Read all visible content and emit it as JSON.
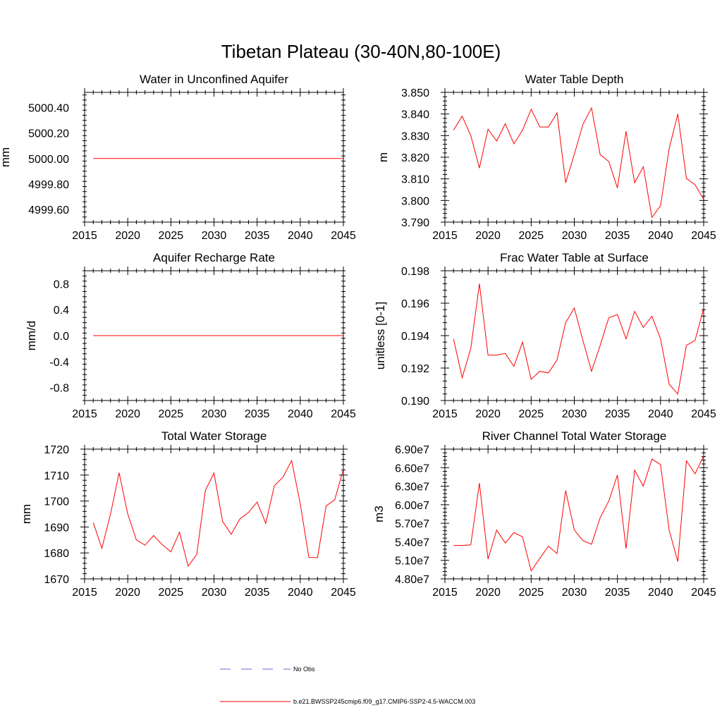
{
  "title": "Tibetan Plateau (30-40N,80-100E)",
  "colors": {
    "model": "#ff0000",
    "obs": "#6b6bd6",
    "axes": "#000000"
  },
  "legend": {
    "obs_label": "No Obs",
    "model_label": "b.e21.BWSSP245cmip6.f09_g17.CMIP6-SSP2-4.5-WACCM.003"
  },
  "chart_data": [
    {
      "type": "line",
      "title": "Water in Unconfined Aquifer",
      "ylabel": "mm",
      "xlim": [
        2015,
        2045
      ],
      "ylim": [
        4999.5,
        5000.52
      ],
      "xticks": [
        2015,
        2020,
        2025,
        2030,
        2035,
        2040,
        2045
      ],
      "yticks": [
        4999.6,
        4999.8,
        5000.0,
        5000.2,
        5000.4
      ],
      "ytick_labels": [
        "4999.60",
        "4999.80",
        "5000.00",
        "5000.20",
        "5000.40"
      ],
      "series": [
        {
          "x": [
            2016,
            2017,
            2018,
            2019,
            2020,
            2021,
            2022,
            2023,
            2024,
            2025,
            2026,
            2027,
            2028,
            2029,
            2030,
            2031,
            2032,
            2033,
            2034,
            2035,
            2036,
            2037,
            2038,
            2039,
            2040,
            2041,
            2042,
            2043,
            2044,
            2045
          ],
          "values": [
            5000,
            5000,
            5000,
            5000,
            5000,
            5000,
            5000,
            5000,
            5000,
            5000,
            5000,
            5000,
            5000,
            5000,
            5000,
            5000,
            5000,
            5000,
            5000,
            5000,
            5000,
            5000,
            5000,
            5000,
            5000,
            5000,
            5000,
            5000,
            5000,
            5000
          ]
        }
      ]
    },
    {
      "type": "line",
      "title": "Water Table Depth",
      "ylabel": "m",
      "xlim": [
        2015,
        2045
      ],
      "ylim": [
        3.79,
        3.85
      ],
      "xticks": [
        2015,
        2020,
        2025,
        2030,
        2035,
        2040,
        2045
      ],
      "yticks": [
        3.79,
        3.8,
        3.81,
        3.82,
        3.83,
        3.84,
        3.85
      ],
      "ytick_labels": [
        "3.790",
        "3.800",
        "3.810",
        "3.820",
        "3.830",
        "3.840",
        "3.850"
      ],
      "series": [
        {
          "x": [
            2016,
            2017,
            2018,
            2019,
            2020,
            2021,
            2022,
            2023,
            2024,
            2025,
            2026,
            2027,
            2028,
            2029,
            2030,
            2031,
            2032,
            2033,
            2034,
            2035,
            2036,
            2037,
            2038,
            2039,
            2040,
            2041,
            2042,
            2043,
            2044,
            2045
          ],
          "values": [
            3.8325,
            3.839,
            3.83,
            3.815,
            3.833,
            3.8275,
            3.8355,
            3.8262,
            3.8325,
            3.8422,
            3.834,
            3.834,
            3.8405,
            3.8082,
            3.8213,
            3.8352,
            3.8428,
            3.8212,
            3.818,
            3.8058,
            3.832,
            3.8082,
            3.8156,
            3.7922,
            3.7976,
            3.824,
            3.84,
            3.8102,
            3.8073,
            3.8005
          ]
        }
      ]
    },
    {
      "type": "line",
      "title": "Aquifer Recharge Rate",
      "ylabel": "mm/d",
      "xlim": [
        2015,
        2045
      ],
      "ylim": [
        -1.0,
        1.0
      ],
      "xticks": [
        2015,
        2020,
        2025,
        2030,
        2035,
        2040,
        2045
      ],
      "yticks": [
        -0.8,
        -0.4,
        0.0,
        0.4,
        0.8
      ],
      "ytick_labels": [
        "-0.8",
        "-0.4",
        "0.0",
        "0.4",
        "0.8"
      ],
      "series": [
        {
          "x": [
            2016,
            2017,
            2018,
            2019,
            2020,
            2021,
            2022,
            2023,
            2024,
            2025,
            2026,
            2027,
            2028,
            2029,
            2030,
            2031,
            2032,
            2033,
            2034,
            2035,
            2036,
            2037,
            2038,
            2039,
            2040,
            2041,
            2042,
            2043,
            2044,
            2045
          ],
          "values": [
            0,
            0,
            0,
            0,
            0,
            0,
            0,
            0,
            0,
            0,
            0,
            0,
            0,
            0,
            0,
            0,
            0,
            0,
            0,
            0,
            0,
            0,
            0,
            0,
            0,
            0,
            0,
            0,
            0,
            0
          ]
        }
      ]
    },
    {
      "type": "line",
      "title": "Frac Water Table at Surface",
      "ylabel": "unitless [0-1]",
      "xlim": [
        2015,
        2045
      ],
      "ylim": [
        0.19,
        0.198
      ],
      "xticks": [
        2015,
        2020,
        2025,
        2030,
        2035,
        2040,
        2045
      ],
      "yticks": [
        0.19,
        0.192,
        0.194,
        0.196,
        0.198
      ],
      "ytick_labels": [
        "0.190",
        "0.192",
        "0.194",
        "0.196",
        "0.198"
      ],
      "series": [
        {
          "x": [
            2016,
            2017,
            2018,
            2019,
            2020,
            2021,
            2022,
            2023,
            2024,
            2025,
            2026,
            2027,
            2028,
            2029,
            2030,
            2031,
            2032,
            2033,
            2034,
            2035,
            2036,
            2037,
            2038,
            2039,
            2040,
            2041,
            2042,
            2043,
            2044,
            2045
          ],
          "values": [
            0.1938,
            0.1914,
            0.1932,
            0.1972,
            0.1928,
            0.1928,
            0.1929,
            0.1921,
            0.1936,
            0.1913,
            0.1918,
            0.1917,
            0.1925,
            0.1948,
            0.1957,
            0.1937,
            0.1918,
            0.1934,
            0.1951,
            0.1953,
            0.1938,
            0.1955,
            0.1945,
            0.1952,
            0.1938,
            0.191,
            0.1904,
            0.1934,
            0.1937,
            0.1957
          ]
        }
      ]
    },
    {
      "type": "line",
      "title": "Total Water Storage",
      "ylabel": "mm",
      "xlim": [
        2015,
        2045
      ],
      "ylim": [
        1670,
        1720
      ],
      "xticks": [
        2015,
        2020,
        2025,
        2030,
        2035,
        2040,
        2045
      ],
      "yticks": [
        1670,
        1680,
        1690,
        1700,
        1710,
        1720
      ],
      "ytick_labels": [
        "1670",
        "1680",
        "1690",
        "1700",
        "1710",
        "1720"
      ],
      "series": [
        {
          "x": [
            2016,
            2017,
            2018,
            2019,
            2020,
            2021,
            2022,
            2023,
            2024,
            2025,
            2026,
            2027,
            2028,
            2029,
            2030,
            2031,
            2032,
            2033,
            2034,
            2035,
            2036,
            2037,
            2038,
            2039,
            2040,
            2041,
            2042,
            2043,
            2044,
            2045
          ],
          "values": [
            1691.7,
            1681.8,
            1694.9,
            1710.9,
            1695.0,
            1685.0,
            1683.0,
            1686.7,
            1683.2,
            1680.4,
            1688.0,
            1674.9,
            1679.4,
            1704.1,
            1710.8,
            1692.1,
            1687.2,
            1693.1,
            1695.6,
            1699.6,
            1691.4,
            1705.9,
            1709.2,
            1715.6,
            1699.0,
            1678.3,
            1678.2,
            1698.1,
            1700.5,
            1712.3
          ]
        }
      ]
    },
    {
      "type": "line",
      "title": "River Channel Total Water Storage",
      "ylabel": "m3",
      "xlim": [
        2015,
        2045
      ],
      "ylim": [
        48000000,
        69000000
      ],
      "xticks": [
        2015,
        2020,
        2025,
        2030,
        2035,
        2040,
        2045
      ],
      "yticks": [
        48000000,
        51000000,
        54000000,
        57000000,
        60000000,
        63000000,
        66000000,
        69000000
      ],
      "ytick_labels": [
        "4.80e7",
        "5.10e7",
        "5.40e7",
        "5.70e7",
        "6.00e7",
        "6.30e7",
        "6.60e7",
        "6.90e7"
      ],
      "series": [
        {
          "x": [
            2016,
            2017,
            2018,
            2019,
            2020,
            2021,
            2022,
            2023,
            2024,
            2025,
            2026,
            2027,
            2028,
            2029,
            2030,
            2031,
            2032,
            2033,
            2034,
            2035,
            2036,
            2037,
            2038,
            2039,
            2040,
            2041,
            2042,
            2043,
            2044,
            2045
          ],
          "values": [
            53400000,
            53400000,
            53500000,
            63500000,
            51200000,
            55900000,
            53800000,
            55500000,
            54800000,
            49300000,
            51300000,
            53300000,
            52100000,
            62300000,
            55900000,
            54200000,
            53600000,
            57900000,
            60600000,
            64800000,
            52900000,
            65600000,
            63000000,
            67400000,
            66500000,
            55900000,
            50800000,
            67100000,
            65000000,
            67900000
          ]
        }
      ]
    }
  ]
}
